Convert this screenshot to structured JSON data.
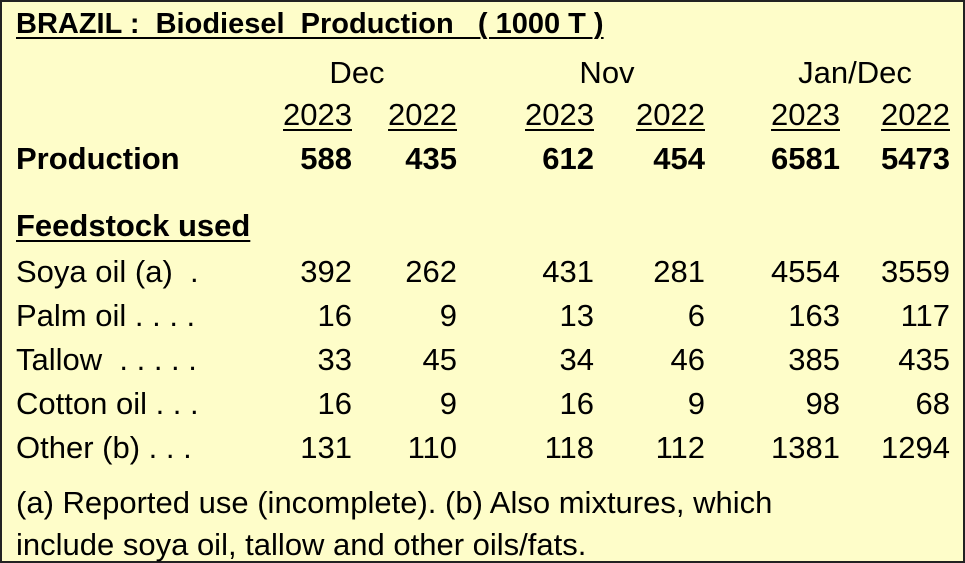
{
  "title": "BRAZIL :  Biodiesel  Production   ( 1000 T )",
  "periods": [
    "Dec",
    "Nov",
    "Jan/Dec"
  ],
  "years": [
    "2023",
    "2022",
    "2023",
    "2022",
    "2023",
    "2022"
  ],
  "production": {
    "label": "Production",
    "values": [
      588,
      435,
      612,
      454,
      6581,
      5473
    ]
  },
  "feedstock": {
    "heading": "Feedstock used",
    "rows": [
      {
        "label": "Soya oil (a)  .",
        "values": [
          392,
          262,
          431,
          281,
          4554,
          3559
        ]
      },
      {
        "label": "Palm oil . . . .",
        "values": [
          16,
          9,
          13,
          6,
          163,
          117
        ]
      },
      {
        "label": "Tallow  . . . . .",
        "values": [
          33,
          45,
          34,
          46,
          385,
          435
        ]
      },
      {
        "label": "Cotton oil . . .",
        "values": [
          16,
          9,
          16,
          9,
          98,
          68
        ]
      },
      {
        "label": "Other (b) . . .",
        "values": [
          131,
          110,
          118,
          112,
          1381,
          1294
        ]
      }
    ]
  },
  "footnote": [
    "(a) Reported use (incomplete). (b) Also mixtures, which",
    "include soya oil, tallow and other oils/fats."
  ]
}
